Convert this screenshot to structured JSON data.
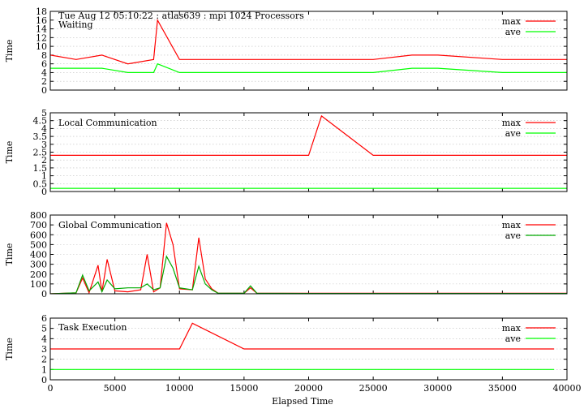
{
  "figure": {
    "header": "Tue Aug 12 05:10:22 : atlas639 : mpi 1024 Processors",
    "xlabel": "Elapsed Time"
  },
  "chart_data": [
    {
      "type": "line",
      "title": "Waiting",
      "ylabel": "Time",
      "xlim": [
        0,
        40000
      ],
      "ylim": [
        0,
        18
      ],
      "yticks": [
        0,
        2,
        4,
        6,
        8,
        10,
        12,
        14,
        16,
        18
      ],
      "legend": "top-right",
      "grid": true,
      "series": [
        {
          "name": "max",
          "color": "#ff0000",
          "x": [
            0,
            2000,
            4000,
            6000,
            8000,
            8300,
            10000,
            12000,
            15000,
            20000,
            25000,
            28000,
            30000,
            35000,
            40000
          ],
          "values": [
            8,
            7,
            8,
            6,
            7,
            16,
            7,
            7,
            7,
            7,
            7,
            8,
            8,
            7,
            7
          ]
        },
        {
          "name": "ave",
          "color": "#00ff00",
          "x": [
            0,
            2000,
            4000,
            6000,
            8000,
            8300,
            10000,
            12000,
            15000,
            20000,
            25000,
            28000,
            30000,
            35000,
            40000
          ],
          "values": [
            5,
            5,
            5,
            4,
            4,
            6,
            4,
            4,
            4,
            4,
            4,
            5,
            5,
            4,
            4
          ]
        }
      ]
    },
    {
      "type": "line",
      "title": "Local Communication",
      "ylabel": "Time",
      "xlim": [
        0,
        40000
      ],
      "ylim": [
        0,
        5
      ],
      "yticks": [
        0,
        0.5,
        1,
        1.5,
        2,
        2.5,
        3,
        3.5,
        4,
        4.5,
        5
      ],
      "legend": "top-right",
      "grid": true,
      "series": [
        {
          "name": "max",
          "color": "#ff0000",
          "x": [
            0,
            5000,
            10000,
            15000,
            20000,
            21000,
            25000,
            30000,
            35000,
            40000
          ],
          "values": [
            2.3,
            2.3,
            2.3,
            2.3,
            2.3,
            4.8,
            2.3,
            2.3,
            2.3,
            2.3
          ]
        },
        {
          "name": "ave",
          "color": "#00ff00",
          "x": [
            0,
            10000,
            20000,
            30000,
            40000
          ],
          "values": [
            0.2,
            0.2,
            0.2,
            0.2,
            0.2
          ]
        }
      ]
    },
    {
      "type": "line",
      "title": "Global Communication",
      "ylabel": "Time",
      "xlim": [
        0,
        40000
      ],
      "ylim": [
        0,
        800
      ],
      "yticks": [
        0,
        100,
        200,
        300,
        400,
        500,
        600,
        700,
        800
      ],
      "legend": "top-right",
      "grid": true,
      "series": [
        {
          "name": "max",
          "color": "#ff0000",
          "x": [
            0,
            2000,
            2500,
            3000,
            3700,
            4000,
            4400,
            5000,
            6000,
            7000,
            7500,
            8000,
            8500,
            9000,
            9500,
            10000,
            11000,
            11500,
            12000,
            12500,
            13000,
            15000,
            15500,
            16000,
            20000,
            30000,
            40000
          ],
          "values": [
            0,
            10,
            160,
            10,
            290,
            20,
            350,
            30,
            20,
            40,
            400,
            20,
            60,
            720,
            500,
            50,
            40,
            570,
            150,
            50,
            5,
            5,
            60,
            5,
            5,
            5,
            5
          ]
        },
        {
          "name": "ave",
          "color": "#00aa00",
          "x": [
            0,
            2000,
            2500,
            3000,
            3700,
            4000,
            4400,
            5000,
            6000,
            7000,
            7500,
            8000,
            8500,
            9000,
            9500,
            10000,
            11000,
            11500,
            12000,
            12500,
            13000,
            15000,
            15500,
            16000,
            20000,
            30000,
            40000
          ],
          "values": [
            0,
            10,
            190,
            30,
            120,
            20,
            140,
            50,
            60,
            60,
            100,
            40,
            60,
            380,
            260,
            60,
            40,
            280,
            100,
            40,
            5,
            5,
            80,
            5,
            3,
            3,
            3
          ]
        }
      ]
    },
    {
      "type": "line",
      "title": "Task Execution",
      "ylabel": "Time",
      "xlim": [
        0,
        40000
      ],
      "ylim": [
        0,
        6
      ],
      "yticks": [
        0,
        1,
        2,
        3,
        4,
        5,
        6
      ],
      "xticks": [
        0,
        5000,
        10000,
        15000,
        20000,
        25000,
        30000,
        35000,
        40000
      ],
      "legend": "top-right",
      "grid": true,
      "series": [
        {
          "name": "max",
          "color": "#ff0000",
          "x": [
            0,
            5000,
            10000,
            11000,
            15000,
            20000,
            25000,
            30000,
            35000,
            39000
          ],
          "values": [
            3,
            3,
            3,
            5.5,
            3,
            3,
            3,
            3,
            3,
            3
          ]
        },
        {
          "name": "ave",
          "color": "#00ff00",
          "x": [
            0,
            5000,
            10000,
            15000,
            20000,
            25000,
            30000,
            35000,
            39000
          ],
          "values": [
            1,
            1,
            1,
            1,
            1,
            1,
            1,
            1,
            1
          ]
        }
      ]
    }
  ]
}
